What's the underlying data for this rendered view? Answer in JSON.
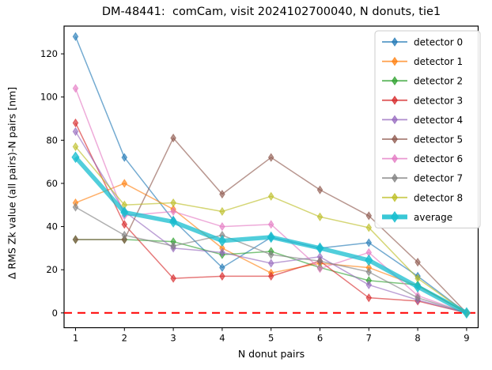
{
  "chart_data": {
    "type": "line",
    "title": "DM-48441:  comCam, visit 2024102700040, N donuts, tie1",
    "xlabel": "N donut pairs",
    "ylabel": "Δ RMS Zk value (all pairs)-N pairs [nm]",
    "x": [
      1,
      2,
      3,
      4,
      5,
      6,
      7,
      8,
      9
    ],
    "xticks": [
      1,
      2,
      3,
      4,
      5,
      6,
      7,
      8,
      9
    ],
    "yticks": [
      0,
      20,
      40,
      60,
      80,
      100,
      120
    ],
    "xlim": [
      0.65,
      9.35
    ],
    "ylim": [
      -7,
      133
    ],
    "grid": false,
    "legend_position": "upper right",
    "zero_line": {
      "y": 0,
      "color": "#ff0000",
      "style": "dashed"
    },
    "series": [
      {
        "name": "detector 0",
        "color": "#1f77b4",
        "marker": "thin-diamond",
        "line_width": 1.5,
        "values": [
          128,
          72,
          43,
          21,
          35,
          30,
          32.5,
          17,
          0
        ]
      },
      {
        "name": "detector 1",
        "color": "#ff7f0e",
        "marker": "thin-diamond",
        "line_width": 1.5,
        "values": [
          51,
          60,
          48,
          30,
          18.5,
          23,
          21,
          12.5,
          0
        ]
      },
      {
        "name": "detector 2",
        "color": "#2ca02c",
        "marker": "thin-diamond",
        "line_width": 1.5,
        "values": [
          34,
          34,
          33,
          27,
          28.5,
          21,
          15,
          13,
          0
        ]
      },
      {
        "name": "detector 3",
        "color": "#d62728",
        "marker": "thin-diamond",
        "line_width": 1.5,
        "values": [
          88,
          41,
          16,
          17,
          17,
          24,
          7,
          5.5,
          0
        ]
      },
      {
        "name": "detector 4",
        "color": "#9467bd",
        "marker": "thin-diamond",
        "line_width": 1.5,
        "values": [
          84,
          47,
          30,
          28,
          23,
          26,
          13,
          6,
          0
        ]
      },
      {
        "name": "detector 5",
        "color": "#8c564b",
        "marker": "thin-diamond",
        "line_width": 1.5,
        "values": [
          34,
          34,
          81,
          55,
          72,
          57,
          45,
          23.5,
          0
        ]
      },
      {
        "name": "detector 6",
        "color": "#e377c2",
        "marker": "thin-diamond",
        "line_width": 1.5,
        "values": [
          104,
          45,
          47,
          40,
          41,
          20.5,
          28,
          8,
          0
        ]
      },
      {
        "name": "detector 7",
        "color": "#7f7f7f",
        "marker": "thin-diamond",
        "line_width": 1.5,
        "values": [
          49,
          36,
          31,
          36,
          27,
          24,
          19,
          7,
          0
        ]
      },
      {
        "name": "detector 8",
        "color": "#bcbd22",
        "marker": "thin-diamond",
        "line_width": 1.5,
        "values": [
          77,
          50,
          51,
          47,
          54,
          44.5,
          39.5,
          16,
          0
        ]
      },
      {
        "name": "average",
        "color": "#17becf",
        "marker": "thin-diamond",
        "line_width": 5.5,
        "values": [
          72.1,
          46.6,
          42.2,
          33.4,
          35.1,
          30.0,
          24.4,
          12.1,
          0
        ]
      }
    ]
  }
}
